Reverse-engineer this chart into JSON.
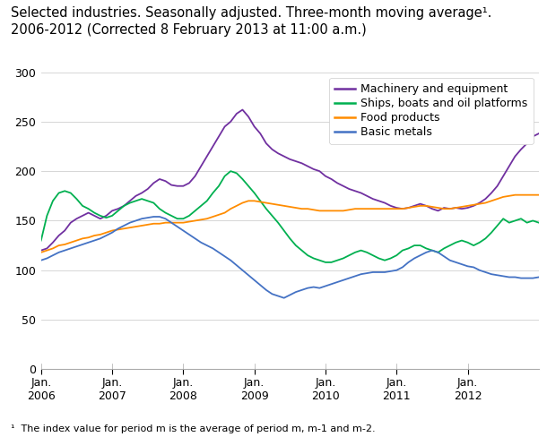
{
  "title": "Selected industries. Seasonally adjusted. Three-month moving average¹.\n2006-2012 (Corrected 8 February 2013 at 11:00 a.m.)",
  "footnote": "¹  The index value for period m is the average of period m, m-1 and m-2.",
  "ylim": [
    0,
    300
  ],
  "yticks": [
    0,
    50,
    100,
    150,
    200,
    250,
    300
  ],
  "legend_labels": [
    "Machinery and equipment",
    "Ships, boats and oil platforms",
    "Food products",
    "Basic metals"
  ],
  "colors": {
    "machinery": "#7030a0",
    "ships": "#00b050",
    "food": "#ff8c00",
    "metals": "#4472c4"
  },
  "machinery": [
    120,
    122,
    128,
    135,
    140,
    148,
    152,
    155,
    158,
    155,
    152,
    155,
    160,
    162,
    165,
    170,
    175,
    178,
    182,
    188,
    192,
    190,
    186,
    185,
    185,
    188,
    195,
    205,
    215,
    225,
    235,
    245,
    250,
    258,
    262,
    255,
    245,
    238,
    228,
    222,
    218,
    215,
    212,
    210,
    208,
    205,
    202,
    200,
    195,
    192,
    188,
    185,
    182,
    180,
    178,
    175,
    172,
    170,
    168,
    165,
    163,
    162,
    163,
    165,
    167,
    165,
    162,
    160,
    163,
    162,
    163,
    162,
    163,
    165,
    168,
    172,
    178,
    185,
    195,
    205,
    215,
    222,
    228,
    235,
    238
  ],
  "ships": [
    130,
    155,
    170,
    178,
    180,
    178,
    172,
    165,
    162,
    158,
    155,
    153,
    155,
    160,
    165,
    168,
    170,
    172,
    170,
    168,
    162,
    158,
    155,
    152,
    152,
    155,
    160,
    165,
    170,
    178,
    185,
    195,
    200,
    198,
    192,
    185,
    178,
    170,
    162,
    155,
    148,
    140,
    132,
    125,
    120,
    115,
    112,
    110,
    108,
    108,
    110,
    112,
    115,
    118,
    120,
    118,
    115,
    112,
    110,
    112,
    115,
    120,
    122,
    125,
    125,
    122,
    120,
    118,
    122,
    125,
    128,
    130,
    128,
    125,
    128,
    132,
    138,
    145,
    152,
    148,
    150,
    152,
    148,
    150,
    148
  ],
  "food": [
    118,
    120,
    122,
    125,
    126,
    128,
    130,
    132,
    133,
    135,
    136,
    138,
    140,
    141,
    142,
    143,
    144,
    145,
    146,
    147,
    147,
    148,
    148,
    148,
    148,
    149,
    150,
    151,
    152,
    154,
    156,
    158,
    162,
    165,
    168,
    170,
    170,
    169,
    168,
    167,
    166,
    165,
    164,
    163,
    162,
    162,
    161,
    160,
    160,
    160,
    160,
    160,
    161,
    162,
    162,
    162,
    162,
    162,
    162,
    162,
    162,
    162,
    163,
    164,
    165,
    165,
    164,
    163,
    162,
    162,
    163,
    164,
    165,
    166,
    167,
    168,
    170,
    172,
    174,
    175,
    176,
    176,
    176,
    176,
    176
  ],
  "metals": [
    110,
    112,
    115,
    118,
    120,
    122,
    124,
    126,
    128,
    130,
    132,
    135,
    138,
    142,
    145,
    148,
    150,
    152,
    153,
    154,
    154,
    152,
    148,
    144,
    140,
    136,
    132,
    128,
    125,
    122,
    118,
    114,
    110,
    105,
    100,
    95,
    90,
    85,
    80,
    76,
    74,
    72,
    75,
    78,
    80,
    82,
    83,
    82,
    84,
    86,
    88,
    90,
    92,
    94,
    96,
    97,
    98,
    98,
    98,
    99,
    100,
    103,
    108,
    112,
    115,
    118,
    120,
    118,
    114,
    110,
    108,
    106,
    104,
    103,
    100,
    98,
    96,
    95,
    94,
    93,
    93,
    92,
    92,
    92,
    93
  ],
  "background_color": "#ffffff",
  "grid_color": "#d0d0d0",
  "title_fontsize": 10.5,
  "tick_fontsize": 9,
  "legend_fontsize": 9
}
